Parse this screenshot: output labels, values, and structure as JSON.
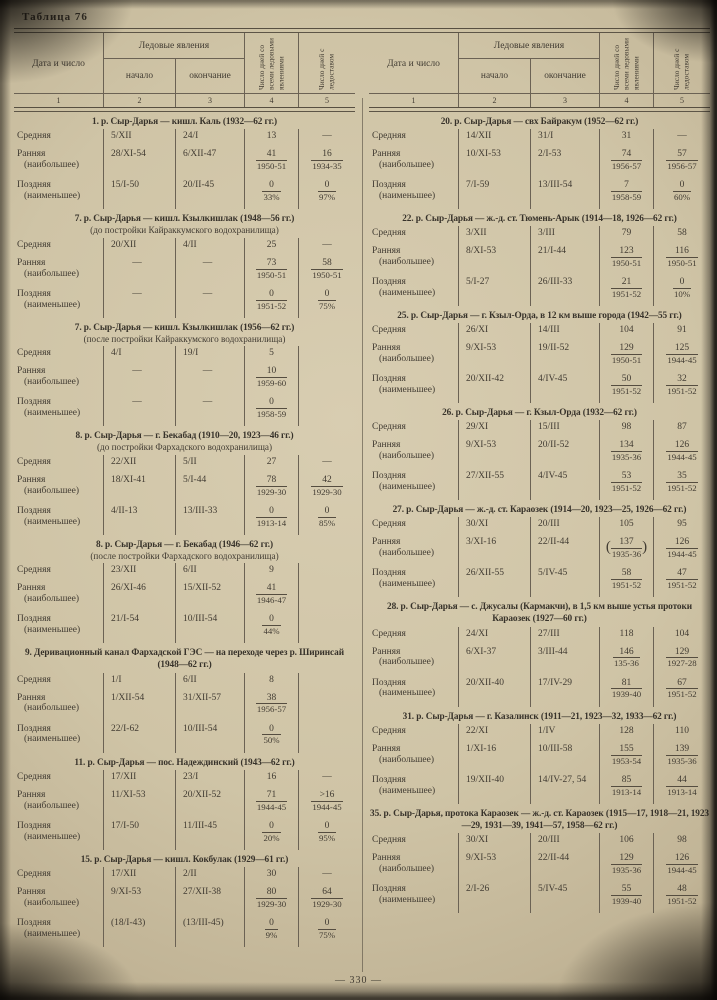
{
  "page": {
    "label": "Таблица 76",
    "number": "— 330 —"
  },
  "header": {
    "date_col": "Дата и число",
    "ice_group": "Ледовые явления",
    "start_col": "начало",
    "end_col": "окончание",
    "days_ice_col": "Число дней со всеми ледовыми явлениями",
    "days_fixed_col": "Число дней с ледоста­вом",
    "numbers": [
      "1",
      "2",
      "3",
      "4",
      "5"
    ]
  },
  "columns": {
    "left": [
      {
        "title": "1. р. Сыр-Дарья — кишл. Каль (1932—62 гг.)",
        "subtitle": "",
        "rows": [
          {
            "label": "Средняя",
            "sublabel": "",
            "start": "5/XII",
            "end": "24/I",
            "days_ice": "13",
            "days_ice_note": "",
            "days_fixed": "—",
            "days_fixed_note": ""
          },
          {
            "label": "Ранняя",
            "sublabel": "(наибольшее)",
            "start": "28/XI-54",
            "end": "6/XII-47",
            "days_ice": "41",
            "days_ice_note": "1950-51",
            "days_fixed": "16",
            "days_fixed_note": "1934-35"
          },
          {
            "label": "Поздняя",
            "sublabel": "(наименьшее)",
            "start": "15/I-50",
            "end": "20/II-45",
            "days_ice": "0",
            "days_ice_note": "33%",
            "days_fixed": "0",
            "days_fixed_note": "97%"
          }
        ]
      },
      {
        "title": "7. р. Сыр-Дарья — кишл. Кзылкишлак (1948—56 гг.)",
        "subtitle": "(до постройки Кайраккумского водохранилища)",
        "rows": [
          {
            "label": "Средняя",
            "sublabel": "",
            "start": "20/XII",
            "end": "4/II",
            "days_ice": "25",
            "days_ice_note": "",
            "days_fixed": "—",
            "days_fixed_note": ""
          },
          {
            "label": "Ранняя",
            "sublabel": "(наибольшее)",
            "start": "—",
            "end": "—",
            "days_ice": "73",
            "days_ice_note": "1950-51",
            "days_fixed": "58",
            "days_fixed_note": "1950-51"
          },
          {
            "label": "Поздняя",
            "sublabel": "(наименьшее)",
            "start": "—",
            "end": "—",
            "days_ice": "0",
            "days_ice_note": "1951-52",
            "days_fixed": "0",
            "days_fixed_note": "75%"
          }
        ]
      },
      {
        "title": "7. р. Сыр-Дарья — кишл. Кзылкишлак (1956—62 гг.)",
        "subtitle": "(после постройки Кайраккумского водохранилища)",
        "rows": [
          {
            "label": "Средняя",
            "sublabel": "",
            "start": "4/I",
            "end": "19/I",
            "days_ice": "5",
            "days_ice_note": "",
            "days_fixed": "",
            "days_fixed_note": ""
          },
          {
            "label": "Ранняя",
            "sublabel": "(наибольшее)",
            "start": "—",
            "end": "—",
            "days_ice": "10",
            "days_ice_note": "1959-60",
            "days_fixed": "",
            "days_fixed_note": ""
          },
          {
            "label": "Поздняя",
            "sublabel": "(наименьшее)",
            "start": "—",
            "end": "—",
            "days_ice": "0",
            "days_ice_note": "1958-59",
            "days_fixed": "",
            "days_fixed_note": ""
          }
        ]
      },
      {
        "title": "8. р. Сыр-Дарья — г. Бекабад (1910—20, 1923—46 гг.)",
        "subtitle": "(до постройки Фархадского водохранилища)",
        "rows": [
          {
            "label": "Средняя",
            "sublabel": "",
            "start": "22/XII",
            "end": "5/II",
            "days_ice": "27",
            "days_ice_note": "",
            "days_fixed": "—",
            "days_fixed_note": ""
          },
          {
            "label": "Ранняя",
            "sublabel": "(наибольшее)",
            "start": "18/XI-41",
            "end": "5/I-44",
            "days_ice": "78",
            "days_ice_note": "1929-30",
            "days_fixed": "42",
            "days_fixed_note": "1929-30"
          },
          {
            "label": "Поздняя",
            "sublabel": "(наименьшее)",
            "start": "4/II-13",
            "end": "13/III-33",
            "days_ice": "0",
            "days_ice_note": "1913-14",
            "days_fixed": "0",
            "days_fixed_note": "85%"
          }
        ]
      },
      {
        "title": "8. р. Сыр-Дарья — г. Бекабад (1946—62 гг.)",
        "subtitle": "(после постройки Фархадского водохранилища)",
        "rows": [
          {
            "label": "Средняя",
            "sublabel": "",
            "start": "23/XII",
            "end": "6/II",
            "days_ice": "9",
            "days_ice_note": "",
            "days_fixed": "",
            "days_fixed_note": ""
          },
          {
            "label": "Ранняя",
            "sublabel": "(наибольшее)",
            "start": "26/XI-46",
            "end": "15/XII-52",
            "days_ice": "41",
            "days_ice_note": "1946-47",
            "days_fixed": "",
            "days_fixed_note": ""
          },
          {
            "label": "Поздняя",
            "sublabel": "(наименьшее)",
            "start": "21/I-54",
            "end": "10/III-54",
            "days_ice": "0",
            "days_ice_note": "44%",
            "days_fixed": "",
            "days_fixed_note": ""
          }
        ]
      },
      {
        "title": "9. Деривационный канал Фархадской ГЭС — на переходе через р. Ширинсай (1948—62 гг.)",
        "subtitle": "",
        "rows": [
          {
            "label": "Средняя",
            "sublabel": "",
            "start": "1/I",
            "end": "6/II",
            "days_ice": "8",
            "days_ice_note": "",
            "days_fixed": "",
            "days_fixed_note": ""
          },
          {
            "label": "Ранняя",
            "sublabel": "(наибольшее)",
            "start": "1/XII-54",
            "end": "31/XII-57",
            "days_ice": "38",
            "days_ice_note": "1956-57",
            "days_fixed": "",
            "days_fixed_note": ""
          },
          {
            "label": "Поздняя",
            "sublabel": "(наименьшее)",
            "start": "22/I-62",
            "end": "10/III-54",
            "days_ice": "0",
            "days_ice_note": "50%",
            "days_fixed": "",
            "days_fixed_note": ""
          }
        ]
      },
      {
        "title": "11. р. Сыр-Дарья — пос. Надеждинский (1943—62 гг.)",
        "subtitle": "",
        "rows": [
          {
            "label": "Средняя",
            "sublabel": "",
            "start": "17/XII",
            "end": "23/I",
            "days_ice": "16",
            "days_ice_note": "",
            "days_fixed": "—",
            "days_fixed_note": ""
          },
          {
            "label": "Ранняя",
            "sublabel": "(наибольшее)",
            "start": "11/XI-53",
            "end": "20/XII-52",
            "days_ice": "71",
            "days_ice_note": "1944-45",
            "days_fixed": ">16",
            "days_fixed_note": "1944-45"
          },
          {
            "label": "Поздняя",
            "sublabel": "(наименьшее)",
            "start": "17/I-50",
            "end": "11/III-45",
            "days_ice": "0",
            "days_ice_note": "20%",
            "days_fixed": "0",
            "days_fixed_note": "95%"
          }
        ]
      },
      {
        "title": "15. р. Сыр-Дарья — кишл. Кокбулак (1929—61 гг.)",
        "subtitle": "",
        "rows": [
          {
            "label": "Средняя",
            "sublabel": "",
            "start": "17/XII",
            "end": "2/II",
            "days_ice": "30",
            "days_ice_note": "",
            "days_fixed": "—",
            "days_fixed_note": ""
          },
          {
            "label": "Ранняя",
            "sublabel": "(наибольшее)",
            "start": "9/XI-53",
            "end": "27/XII-38",
            "days_ice": "80",
            "days_ice_note": "1929-30",
            "days_fixed": "64",
            "days_fixed_note": "1929-30"
          },
          {
            "label": "Поздняя",
            "sublabel": "(наименьшее)",
            "start": "(18/I-43)",
            "end": "(13/III-45)",
            "days_ice": "0",
            "days_ice_note": "9%",
            "days_fixed": "0",
            "days_fixed_note": "75%"
          }
        ]
      }
    ],
    "right": [
      {
        "title": "20. р. Сыр-Дарья — свх Байракум (1952—62 гг.)",
        "subtitle": "",
        "rows": [
          {
            "label": "Средняя",
            "sublabel": "",
            "start": "14/XII",
            "end": "31/I",
            "days_ice": "31",
            "days_ice_note": "",
            "days_fixed": "—",
            "days_fixed_note": ""
          },
          {
            "label": "Ранняя",
            "sublabel": "(наибольшее)",
            "start": "10/XI-53",
            "end": "2/I-53",
            "days_ice": "74",
            "days_ice_note": "1956-57",
            "days_fixed": "57",
            "days_fixed_note": "1956-57"
          },
          {
            "label": "Поздняя",
            "sublabel": "(наименьшее)",
            "start": "7/I-59",
            "end": "13/III-54",
            "days_ice": "7",
            "days_ice_note": "1958-59",
            "days_fixed": "0",
            "days_fixed_note": "60%"
          }
        ]
      },
      {
        "title": "22. р. Сыр-Дарья — ж.-д. ст. Тюмень-Арык (1914—18, 1926—62 гг.)",
        "subtitle": "",
        "rows": [
          {
            "label": "Средняя",
            "sublabel": "",
            "start": "3/XII",
            "end": "3/III",
            "days_ice": "79",
            "days_ice_note": "",
            "days_fixed": "58",
            "days_fixed_note": ""
          },
          {
            "label": "Ранняя",
            "sublabel": "(наибольшее)",
            "start": "8/XI-53",
            "end": "21/I-44",
            "days_ice": "123",
            "days_ice_note": "1950-51",
            "days_fixed": "116",
            "days_fixed_note": "1950-51"
          },
          {
            "label": "Поздняя",
            "sublabel": "(наименьшее)",
            "start": "5/I-27",
            "end": "26/III-33",
            "days_ice": "21",
            "days_ice_note": "1951-52",
            "days_fixed": "0",
            "days_fixed_note": "10%"
          }
        ]
      },
      {
        "title": "25. р. Сыр-Дарья — г. Кзыл-Орда, в 12 км выше города (1942—55 гг.)",
        "subtitle": "",
        "rows": [
          {
            "label": "Средняя",
            "sublabel": "",
            "start": "26/XI",
            "end": "14/III",
            "days_ice": "104",
            "days_ice_note": "",
            "days_fixed": "91",
            "days_fixed_note": ""
          },
          {
            "label": "Ранняя",
            "sublabel": "(наибольшее)",
            "start": "9/XI-53",
            "end": "19/II-52",
            "days_ice": "129",
            "days_ice_note": "1950-51",
            "days_fixed": "125",
            "days_fixed_note": "1944-45"
          },
          {
            "label": "Поздняя",
            "sublabel": "(наименьшее)",
            "start": "20/XII-42",
            "end": "4/IV-45",
            "days_ice": "50",
            "days_ice_note": "1951-52",
            "days_fixed": "32",
            "days_fixed_note": "1951-52"
          }
        ]
      },
      {
        "title": "26. р. Сыр-Дарья — г. Кзыл-Орда (1932—62 гг.)",
        "subtitle": "",
        "rows": [
          {
            "label": "Средняя",
            "sublabel": "",
            "start": "29/XI",
            "end": "15/III",
            "days_ice": "98",
            "days_ice_note": "",
            "days_fixed": "87",
            "days_fixed_note": ""
          },
          {
            "label": "Ранняя",
            "sublabel": "(наибольшее)",
            "start": "9/XI-53",
            "end": "20/II-52",
            "days_ice": "134",
            "days_ice_note": "1935-36",
            "days_fixed": "126",
            "days_fixed_note": "1944-45"
          },
          {
            "label": "Поздняя",
            "sublabel": "(наименьшее)",
            "start": "27/XII-55",
            "end": "4/IV-45",
            "days_ice": "53",
            "days_ice_note": "1951-52",
            "days_fixed": "35",
            "days_fixed_note": "1951-52"
          }
        ]
      },
      {
        "title": "27. р. Сыр-Дарья — ж.-д. ст. Караозек (1914—20, 1923—25, 1926—62 гг.)",
        "subtitle": "",
        "rows": [
          {
            "label": "Средняя",
            "sublabel": "",
            "start": "30/XI",
            "end": "20/III",
            "days_ice": "105",
            "days_ice_note": "",
            "days_fixed": "95",
            "days_fixed_note": ""
          },
          {
            "label": "Ранняя",
            "sublabel": "(наибольшее)",
            "start": "3/XI-16",
            "end": "22/II-44",
            "days_ice": "137",
            "days_ice_note": "1935-36",
            "days_ice_paren": true,
            "days_fixed": "126",
            "days_fixed_note": "1944-45"
          },
          {
            "label": "Поздняя",
            "sublabel": "(наименьшее)",
            "start": "26/XII-55",
            "end": "5/IV-45",
            "days_ice": "58",
            "days_ice_note": "1951-52",
            "days_fixed": "47",
            "days_fixed_note": "1951-52"
          }
        ]
      },
      {
        "title": "28. р. Сыр-Дарья — с. Джусалы (Кармакчи), в 1,5 км выше устья протоки Караозек (1927—60 гг.)",
        "subtitle": "",
        "rows": [
          {
            "label": "Средняя",
            "sublabel": "",
            "start": "24/XI",
            "end": "27/III",
            "days_ice": "118",
            "days_ice_note": "",
            "days_fixed": "104",
            "days_fixed_note": ""
          },
          {
            "label": "Ранняя",
            "sublabel": "(наибольшее)",
            "start": "6/XI-37",
            "end": "3/III-44",
            "days_ice": "146",
            "days_ice_note": "135-36",
            "days_fixed": "129",
            "days_fixed_note": "1927-28"
          },
          {
            "label": "Поздняя",
            "sublabel": "(наименьшее)",
            "start": "20/XII-40",
            "end": "17/IV-29",
            "days_ice": "81",
            "days_ice_note": "1939-40",
            "days_fixed": "67",
            "days_fixed_note": "1951-52"
          }
        ]
      },
      {
        "title": "31. р. Сыр-Дарья — г. Казалинск (1911—21, 1923—32, 1933—62 гг.)",
        "subtitle": "",
        "rows": [
          {
            "label": "Средняя",
            "sublabel": "",
            "start": "22/XI",
            "end": "1/IV",
            "days_ice": "128",
            "days_ice_note": "",
            "days_fixed": "110",
            "days_fixed_note": ""
          },
          {
            "label": "Ранняя",
            "sublabel": "(наибольшее)",
            "start": "1/XI-16",
            "end": "10/III-58",
            "days_ice": "155",
            "days_ice_note": "1953-54",
            "days_fixed": "139",
            "days_fixed_note": "1935-36"
          },
          {
            "label": "Поздняя",
            "sublabel": "(наименьшее)",
            "start": "19/XII-40",
            "end": "14/IV-27, 54",
            "days_ice": "85",
            "days_ice_note": "1913-14",
            "days_fixed": "44",
            "days_fixed_note": "1913-14"
          }
        ]
      },
      {
        "title": "35. р. Сыр-Дарья, протока Караозек — ж.-д. ст. Караозек (1915—17, 1918—21, 1923—29, 1931—39, 1941—57, 1958—62 гг.)",
        "subtitle": "",
        "rows": [
          {
            "label": "Средняя",
            "sublabel": "",
            "start": "30/XI",
            "end": "20/III",
            "days_ice": "106",
            "days_ice_note": "",
            "days_fixed": "98",
            "days_fixed_note": ""
          },
          {
            "label": "Ранняя",
            "sublabel": "(наибольшее)",
            "start": "9/XI-53",
            "end": "22/II-44",
            "days_ice": "129",
            "days_ice_note": "1935-36",
            "days_fixed": "126",
            "days_fixed_note": "1944-45"
          },
          {
            "label": "Поздняя",
            "sublabel": "(наименьшее)",
            "start": "2/I-26",
            "end": "5/IV-45",
            "days_ice": "55",
            "days_ice_note": "1939-40",
            "days_fixed": "48",
            "days_fixed_note": "1951-52"
          }
        ]
      }
    ]
  }
}
